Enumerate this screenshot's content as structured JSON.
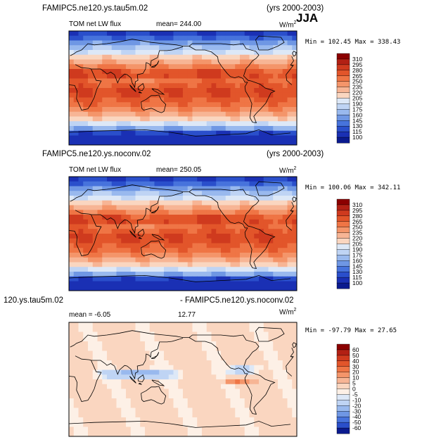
{
  "season_label": "JJA",
  "chart_data": [
    {
      "type": "heatmap",
      "case": "FAMIPC5.ne120.ys.tau5m.02",
      "years": "(yrs 2000-2003)",
      "variable": "TOM net LW flux",
      "stat": "mean= 244.00",
      "units": "W/m",
      "units_sup": "2",
      "minmax": "Min = 102.45 Max = 338.43",
      "min": 102.45,
      "max": 338.43,
      "mean": 244.0,
      "colorbar_levels": [
        "310",
        "295",
        "280",
        "265",
        "250",
        "235",
        "220",
        "205",
        "190",
        "175",
        "160",
        "145",
        "130",
        "115",
        "100"
      ],
      "colorbar_colors": [
        "#8b0000",
        "#b22014",
        "#cf3a1e",
        "#e2552a",
        "#ef7545",
        "#f4956a",
        "#f7b595",
        "#fad6c0",
        "#dde8f7",
        "#bfd4f4",
        "#99b9ee",
        "#6f97e4",
        "#4773dc",
        "#2a4fcb",
        "#1a30b4",
        "#0a1a8e"
      ]
    },
    {
      "type": "heatmap",
      "case": "FAMIPC5.ne120.ys.noconv.02",
      "years": "(yrs 2000-2003)",
      "variable": "TOM net LW flux",
      "stat": "mean= 250.05",
      "units": "W/m",
      "units_sup": "2",
      "minmax": "Min = 100.06 Max = 342.11",
      "min": 100.06,
      "max": 342.11,
      "mean": 250.05,
      "colorbar_levels": [
        "310",
        "295",
        "280",
        "265",
        "250",
        "235",
        "220",
        "205",
        "190",
        "175",
        "160",
        "145",
        "130",
        "115",
        "100"
      ],
      "colorbar_colors": [
        "#8b0000",
        "#b22014",
        "#cf3a1e",
        "#e2552a",
        "#ef7545",
        "#f4956a",
        "#f7b595",
        "#fad6c0",
        "#dde8f7",
        "#bfd4f4",
        "#99b9ee",
        "#6f97e4",
        "#4773dc",
        "#2a4fcb",
        "#1a30b4",
        "#0a1a8e"
      ]
    },
    {
      "type": "heatmap",
      "case": "120.ys.tau5m.02",
      "case_right": "- FAMIPC5.ne120.ys.noconv.02",
      "stat": "mean =   -6.05",
      "rmse": 12.77,
      "units": "W/m",
      "units_sup": "2",
      "minmax": "Min = -97.79 Max =  27.65",
      "min": -97.79,
      "max": 27.65,
      "mean": -6.05,
      "colorbar_levels": [
        "60",
        "50",
        "40",
        "30",
        "20",
        "10",
        "5",
        "0",
        "-5",
        "-10",
        "-20",
        "-30",
        "-40",
        "-50",
        "-60"
      ],
      "colorbar_colors": [
        "#8b0000",
        "#b22014",
        "#cf3a1e",
        "#e2552a",
        "#ef7545",
        "#f4956a",
        "#f7b595",
        "#fad6c0",
        "#fdf0e6",
        "#dde8f7",
        "#bfd4f4",
        "#99b9ee",
        "#6f97e4",
        "#4773dc",
        "#2a4fcb",
        "#0a1a8e"
      ]
    }
  ]
}
